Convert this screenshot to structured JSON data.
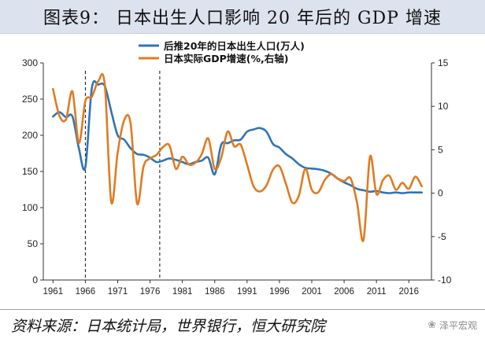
{
  "title": "图表9： 日本出生人口影响 20 年后的 GDP 增速",
  "source": "资料来源：日本统计局，世界银行，恒大研究院",
  "watermark": {
    "text": "泽平宏观",
    "icon": "wechat-icon"
  },
  "colors": {
    "births": "#2e75b6",
    "gdp": "#e07b22",
    "axis": "#333333",
    "title_bg": "#dde3ee"
  },
  "chart_data": {
    "type": "line",
    "x_ticks": [
      1961,
      1966,
      1971,
      1976,
      1981,
      1986,
      1991,
      1996,
      2001,
      2006,
      2011,
      2016
    ],
    "left_axis": {
      "min": 0,
      "max": 300,
      "ticks": [
        0,
        50,
        100,
        150,
        200,
        250,
        300
      ]
    },
    "right_axis": {
      "min": -10,
      "max": 15,
      "ticks": [
        -10,
        -5,
        0,
        5,
        10,
        15
      ]
    },
    "legend_position": "top-center",
    "dashed_vlines": [
      1966,
      1977.5
    ],
    "series": [
      {
        "name": "后推20年的日本出生人口(万人)",
        "axis": "left",
        "x": [
          1961,
          1962,
          1963,
          1964,
          1965,
          1966,
          1967,
          1968,
          1969,
          1970,
          1971,
          1972,
          1973,
          1974,
          1975,
          1976,
          1977,
          1978,
          1979,
          1980,
          1981,
          1982,
          1983,
          1984,
          1985,
          1986,
          1987,
          1988,
          1989,
          1990,
          1991,
          1992,
          1993,
          1994,
          1995,
          1996,
          1997,
          1998,
          1999,
          2000,
          2001,
          2002,
          2003,
          2004,
          2005,
          2006,
          2007,
          2008,
          2009,
          2010,
          2011,
          2012,
          2013,
          2014,
          2015,
          2016,
          2017,
          2018
        ],
        "values": [
          226,
          232,
          225,
          226,
          182,
          156,
          265,
          270,
          268,
          233,
          200,
          194,
          182,
          174,
          173,
          169,
          163,
          165,
          168,
          166,
          163,
          160,
          163,
          165,
          169,
          146,
          187,
          189,
          193,
          194,
          205,
          208,
          210,
          205,
          188,
          183,
          174,
          168,
          160,
          155,
          154,
          153,
          151,
          147,
          140,
          135,
          131,
          126,
          124,
          122,
          123,
          121,
          120,
          121,
          120,
          121,
          121,
          121
        ]
      },
      {
        "name": "日本实际GDP增速(%,右轴)",
        "axis": "right",
        "x": [
          1961,
          1962,
          1963,
          1964,
          1965,
          1966,
          1967,
          1968,
          1969,
          1970,
          1971,
          1972,
          1973,
          1974,
          1975,
          1976,
          1977,
          1978,
          1979,
          1980,
          1981,
          1982,
          1983,
          1984,
          1985,
          1986,
          1987,
          1988,
          1989,
          1990,
          1991,
          1992,
          1993,
          1994,
          1995,
          1996,
          1997,
          1998,
          1999,
          2000,
          2001,
          2002,
          2003,
          2004,
          2005,
          2006,
          2007,
          2008,
          2009,
          2010,
          2011,
          2012,
          2013,
          2014,
          2015,
          2016,
          2017,
          2018
        ],
        "values": [
          12.0,
          8.9,
          8.5,
          11.7,
          5.8,
          10.6,
          11.1,
          12.9,
          12.5,
          -1.0,
          4.7,
          8.4,
          8.0,
          -1.2,
          3.1,
          4.0,
          4.4,
          5.3,
          5.5,
          2.8,
          4.2,
          3.3,
          3.5,
          4.5,
          6.3,
          2.8,
          4.1,
          7.1,
          5.4,
          5.6,
          3.3,
          0.8,
          0.2,
          0.9,
          2.7,
          3.1,
          1.1,
          -1.1,
          -0.3,
          2.8,
          0.4,
          0.1,
          1.5,
          2.2,
          1.7,
          1.4,
          1.7,
          -1.1,
          -5.4,
          4.2,
          -0.1,
          1.5,
          2.0,
          0.4,
          1.2,
          0.5,
          1.9,
          0.8
        ]
      }
    ]
  }
}
